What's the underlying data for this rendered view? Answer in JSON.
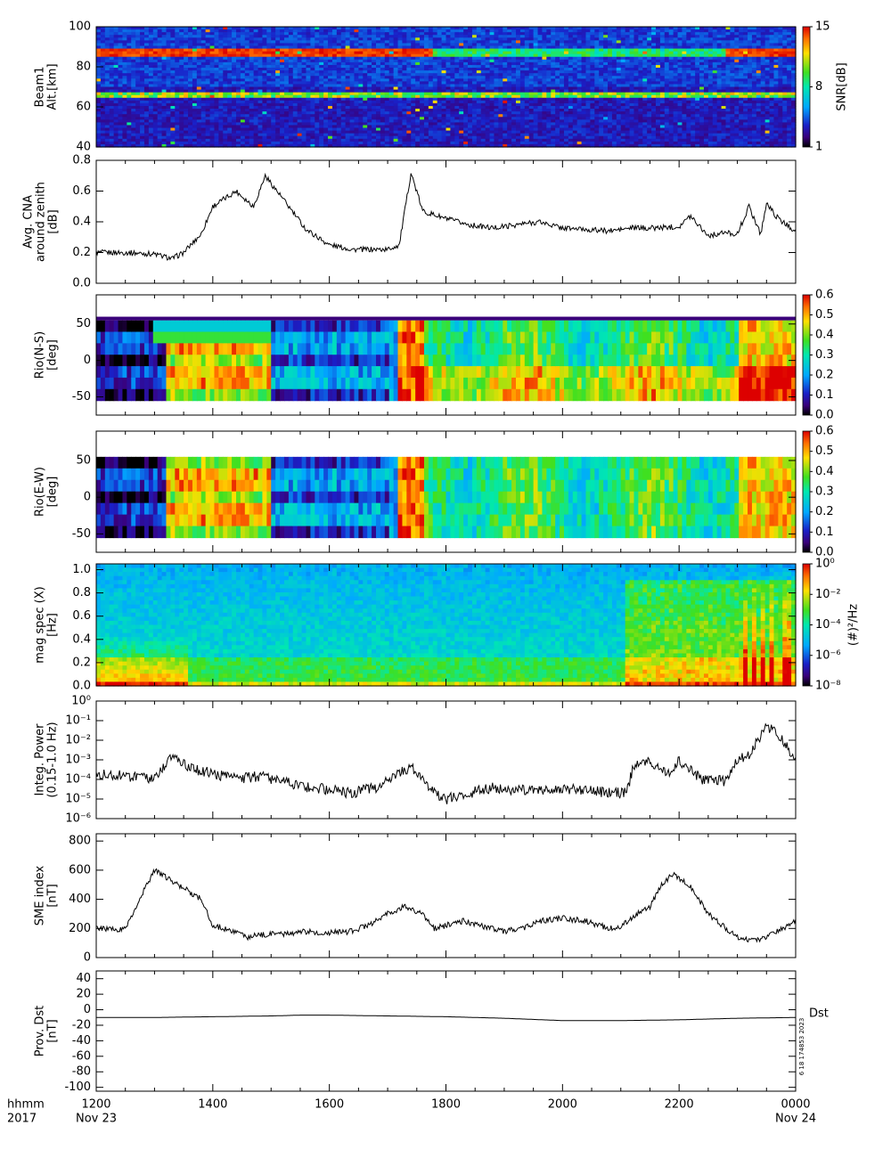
{
  "chart_data": [
    {
      "type": "heatmap",
      "ylabel": [
        "Beam1",
        "Alt.[km]"
      ],
      "yticks": [
        "40",
        "60",
        "80",
        "100"
      ],
      "ylim": [
        40,
        100
      ],
      "colorbar": {
        "label": "SNR[dB]",
        "ticks": [
          "1",
          "8",
          "15"
        ],
        "range": [
          1,
          15
        ]
      },
      "layers": [
        {
          "altitude_km": 87,
          "description": "strong echo band"
        },
        {
          "altitude_km": 66,
          "description": "weak echo band"
        }
      ]
    },
    {
      "type": "line",
      "ylabel": [
        "Avg. CNA",
        "around zenith",
        "[dB]"
      ],
      "yticks": [
        "0.0",
        "0.2",
        "0.4",
        "0.6",
        "0.8"
      ],
      "ylim": [
        0,
        0.8
      ],
      "x_hours": [
        12.0,
        12.5,
        13.0,
        13.3,
        13.5,
        13.8,
        14.0,
        14.4,
        14.7,
        14.9,
        15.2,
        15.6,
        16.0,
        16.4,
        16.8,
        17.0,
        17.2,
        17.4,
        17.6,
        18.0,
        18.4,
        18.8,
        19.2,
        19.6,
        20.0,
        20.4,
        20.8,
        21.2,
        21.6,
        22.0,
        22.2,
        22.5,
        22.8,
        23.0,
        23.2,
        23.4,
        23.5,
        23.7,
        24.0
      ],
      "values": [
        0.2,
        0.2,
        0.19,
        0.16,
        0.2,
        0.32,
        0.5,
        0.6,
        0.5,
        0.7,
        0.55,
        0.35,
        0.25,
        0.22,
        0.22,
        0.22,
        0.25,
        0.72,
        0.47,
        0.42,
        0.38,
        0.36,
        0.38,
        0.4,
        0.36,
        0.35,
        0.34,
        0.36,
        0.36,
        0.37,
        0.44,
        0.31,
        0.33,
        0.32,
        0.5,
        0.32,
        0.52,
        0.42,
        0.34
      ]
    },
    {
      "type": "heatmap",
      "ylabel": [
        "Rio(N-S)",
        "[deg]"
      ],
      "yticks": [
        "-50",
        "0",
        "50"
      ],
      "ylim": [
        -75,
        90
      ],
      "data_range_deg": [
        -55,
        55
      ],
      "colorbar": {
        "label": "",
        "ticks": [
          "0.0",
          "0.1",
          "0.2",
          "0.3",
          "0.4",
          "0.5",
          "0.6"
        ],
        "range": [
          0,
          0.6
        ]
      }
    },
    {
      "type": "heatmap",
      "ylabel": [
        "Rio(E-W)",
        "[deg]"
      ],
      "yticks": [
        "-50",
        "0",
        "50"
      ],
      "ylim": [
        -75,
        90
      ],
      "data_range_deg": [
        -55,
        55
      ],
      "colorbar": {
        "label": "",
        "ticks": [
          "0.0",
          "0.1",
          "0.2",
          "0.3",
          "0.4",
          "0.5",
          "0.6"
        ],
        "range": [
          0,
          0.6
        ]
      }
    },
    {
      "type": "heatmap",
      "ylabel": [
        "mag spec (X)",
        "[Hz]"
      ],
      "yticks": [
        "0.0",
        "0.2",
        "0.4",
        "0.6",
        "0.8",
        "1.0"
      ],
      "ylim": [
        0,
        1.05
      ],
      "colorbar": {
        "label": "(#)²/Hz",
        "ticks": [
          "10⁻⁸",
          "10⁻⁶",
          "10⁻⁴",
          "10⁻²",
          "10⁰"
        ],
        "scale": "log"
      }
    },
    {
      "type": "line",
      "ylabel": [
        "Integ. Power",
        "(0.15-1.0 Hz)"
      ],
      "yticks": [
        "10⁻⁶",
        "10⁻⁵",
        "10⁻⁴",
        "10⁻³",
        "10⁻²",
        "10⁻¹",
        "10⁰"
      ],
      "yscale": "log",
      "ylim": [
        1e-06,
        1
      ],
      "x_hours": [
        12.0,
        12.5,
        13.0,
        13.3,
        13.6,
        14.0,
        14.4,
        14.8,
        15.2,
        15.6,
        16.0,
        16.4,
        16.8,
        17.2,
        17.4,
        17.6,
        17.8,
        18.0,
        18.4,
        18.8,
        19.2,
        19.6,
        20.0,
        20.4,
        20.8,
        21.1,
        21.2,
        21.4,
        21.6,
        21.8,
        22.0,
        22.2,
        22.4,
        22.6,
        22.8,
        23.0,
        23.2,
        23.5,
        23.7,
        24.0
      ],
      "values": [
        0.0002,
        0.00015,
        0.0001,
        0.0015,
        0.0004,
        0.0002,
        0.0001,
        0.00015,
        8e-05,
        4e-05,
        3e-05,
        2e-05,
        4e-05,
        0.0002,
        0.0004,
        0.0001,
        2e-05,
        1e-05,
        2e-05,
        4e-05,
        3e-05,
        3e-05,
        3e-05,
        3e-05,
        2e-05,
        2e-05,
        0.0003,
        0.001,
        0.0004,
        0.0002,
        0.001,
        0.0003,
        0.0001,
        0.0001,
        8e-05,
        0.001,
        0.002,
        0.05,
        0.02,
        0.001
      ]
    },
    {
      "type": "line",
      "ylabel": [
        "SME index",
        "[nT]"
      ],
      "yticks": [
        "0",
        "200",
        "400",
        "600",
        "800"
      ],
      "ylim": [
        0,
        850
      ],
      "x_hours": [
        12.0,
        12.3,
        12.5,
        12.8,
        13.0,
        13.2,
        13.4,
        13.6,
        13.8,
        14.0,
        14.3,
        14.6,
        14.9,
        15.2,
        15.6,
        16.0,
        16.4,
        16.8,
        17.0,
        17.3,
        17.6,
        17.8,
        18.0,
        18.3,
        18.6,
        19.0,
        19.3,
        19.6,
        20.0,
        20.4,
        20.8,
        21.0,
        21.2,
        21.5,
        21.7,
        21.9,
        22.2,
        22.5,
        22.8,
        23.1,
        23.4,
        23.7,
        24.0
      ],
      "values": [
        200,
        190,
        200,
        450,
        600,
        550,
        500,
        450,
        400,
        220,
        190,
        140,
        160,
        160,
        180,
        170,
        180,
        250,
        300,
        350,
        300,
        200,
        220,
        250,
        220,
        180,
        200,
        250,
        270,
        250,
        200,
        210,
        280,
        350,
        500,
        580,
        480,
        300,
        200,
        120,
        130,
        180,
        250
      ]
    },
    {
      "type": "line",
      "ylabel": [
        "Prov. Dst",
        "[nT]"
      ],
      "yticks": [
        "-100",
        "-80",
        "-60",
        "-40",
        "-20",
        "0",
        "20",
        "40"
      ],
      "ylim": [
        -105,
        50
      ],
      "legend": "Dst",
      "x_hours": [
        12.0,
        13.0,
        14.0,
        15.0,
        15.5,
        16.0,
        17.0,
        18.0,
        19.0,
        20.0,
        21.0,
        22.0,
        23.0,
        24.0
      ],
      "values": [
        -10,
        -10,
        -9,
        -8,
        -7,
        -7,
        -8,
        -9,
        -11,
        -14,
        -14,
        -13,
        -11,
        -10
      ]
    }
  ],
  "x_axis": {
    "ticks": [
      "1200",
      "1400",
      "1600",
      "1800",
      "2000",
      "2200",
      "0000"
    ],
    "range_hours": [
      12,
      24
    ],
    "row_label_1": "hhmm",
    "row_label_2": "2017",
    "start_date": "Nov 23",
    "end_date": "Nov 24"
  },
  "timestamp": "6 18 174853 2023"
}
